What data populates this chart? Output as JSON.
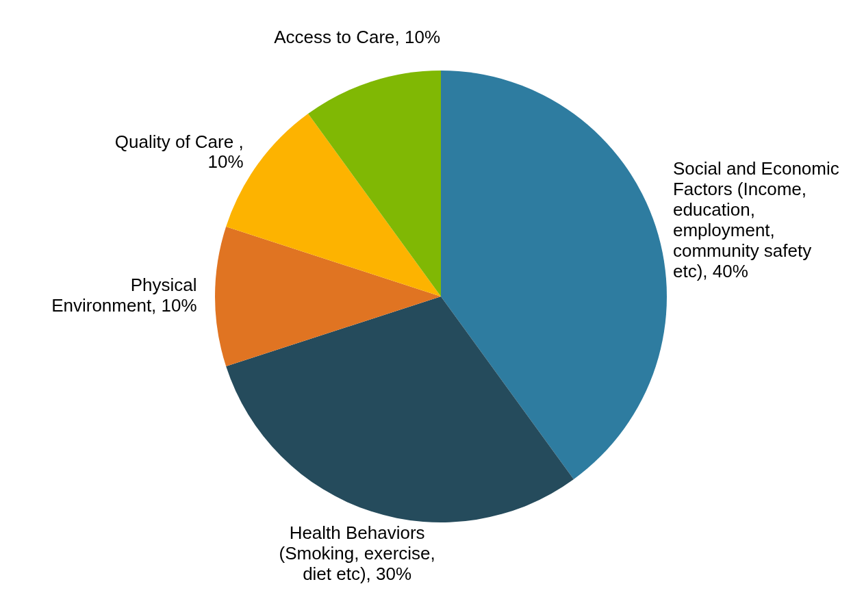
{
  "chart_data": {
    "type": "pie",
    "categories": [
      "Social and Economic Factors (Income, education, employment, community safety etc), 40%",
      "Health Behaviors (Smoking, exercise, diet etc), 30%",
      "Physical Environment, 10%",
      "Quality of Care , 10%",
      "Access to Care, 10%"
    ],
    "values": [
      40,
      30,
      10,
      10,
      10
    ],
    "colors": [
      "#2e7ca0",
      "#254b5c",
      "#e07422",
      "#fdb300",
      "#80b804"
    ],
    "legend": false
  }
}
